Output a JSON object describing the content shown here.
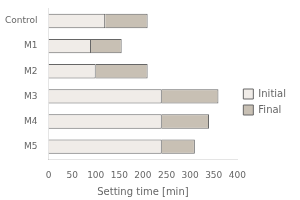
{
  "chart_data": {
    "type": "bar",
    "orientation": "horizontal",
    "stacked": true,
    "categories": [
      "Control",
      "M1",
      "M2",
      "M3",
      "M4",
      "M5"
    ],
    "series": [
      {
        "name": "Initial",
        "color": "#f0ece8",
        "values": [
          120,
          90,
          100,
          240,
          240,
          240
        ]
      },
      {
        "name": "Final",
        "color": "#c8c0b4",
        "values": [
          90,
          65,
          110,
          120,
          100,
          70
        ]
      }
    ],
    "xlabel": "Setting time [min]",
    "xlim": [
      0,
      400
    ],
    "xticks": [
      0,
      50,
      100,
      150,
      200,
      250,
      300,
      350,
      400
    ],
    "grid": false,
    "legend": "right"
  }
}
